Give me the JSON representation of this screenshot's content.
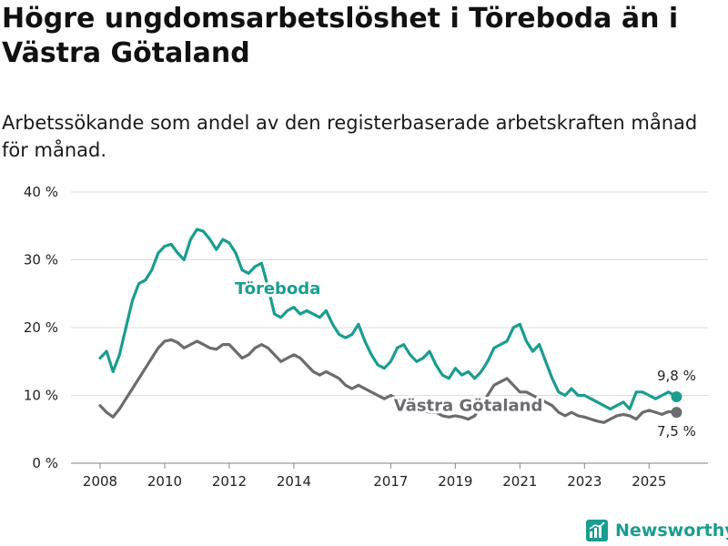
{
  "title": "Högre ungdomsarbetslöshet i Töreboda än i Västra Götaland",
  "subtitle": "Arbetssökande som andel av den registerbaserade arbetskraften månad för månad.",
  "brand": {
    "name": "Newsworthy",
    "color": "#1a9d8f"
  },
  "chart_data": {
    "type": "line",
    "title": "Högre ungdomsarbetslöshet i Töreboda än i Västra Götaland",
    "xlabel": "",
    "ylabel": "",
    "xlim": [
      2008.0,
      2025.95
    ],
    "ylim": [
      0,
      40
    ],
    "y_ticks": [
      0,
      10,
      20,
      30,
      40
    ],
    "y_tick_labels": [
      "0 %",
      "10 %",
      "20 %",
      "30 %",
      "40 %"
    ],
    "x_ticks": [
      2008,
      2010,
      2012,
      2014,
      2017,
      2019,
      2021,
      2023,
      2025
    ],
    "x_tick_labels": [
      "2008",
      "2010",
      "2012",
      "2014",
      "2017",
      "2019",
      "2021",
      "2023",
      "2025"
    ],
    "grid": true,
    "legend": "inline labels",
    "series": [
      {
        "name": "Töreboda",
        "color": "#1a9d8f",
        "end_label": "9,8 %",
        "end_value": 9.8,
        "x": [
          2008.0,
          2008.2,
          2008.4,
          2008.6,
          2008.8,
          2009.0,
          2009.2,
          2009.4,
          2009.6,
          2009.8,
          2010.0,
          2010.2,
          2010.4,
          2010.6,
          2010.8,
          2011.0,
          2011.2,
          2011.4,
          2011.6,
          2011.8,
          2012.0,
          2012.2,
          2012.4,
          2012.6,
          2012.8,
          2013.0,
          2013.2,
          2013.4,
          2013.6,
          2013.8,
          2014.0,
          2014.2,
          2014.4,
          2014.6,
          2014.8,
          2015.0,
          2015.2,
          2015.4,
          2015.6,
          2015.8,
          2016.0,
          2016.2,
          2016.4,
          2016.6,
          2016.8,
          2017.0,
          2017.2,
          2017.4,
          2017.6,
          2017.8,
          2018.0,
          2018.2,
          2018.4,
          2018.6,
          2018.8,
          2019.0,
          2019.2,
          2019.4,
          2019.6,
          2019.8,
          2020.0,
          2020.2,
          2020.4,
          2020.6,
          2020.8,
          2021.0,
          2021.2,
          2021.4,
          2021.6,
          2021.8,
          2022.0,
          2022.2,
          2022.4,
          2022.6,
          2022.8,
          2023.0,
          2023.2,
          2023.4,
          2023.6,
          2023.8,
          2024.0,
          2024.2,
          2024.4,
          2024.6,
          2024.8,
          2025.0,
          2025.2,
          2025.4,
          2025.6,
          2025.85
        ],
        "values": [
          15.5,
          16.5,
          13.5,
          16.0,
          20.0,
          24.0,
          26.5,
          27.0,
          28.5,
          31.0,
          32.0,
          32.3,
          31.0,
          30.0,
          33.0,
          34.5,
          34.2,
          33.0,
          31.5,
          33.0,
          32.5,
          31.0,
          28.5,
          28.0,
          29.0,
          29.5,
          26.0,
          22.0,
          21.5,
          22.5,
          23.0,
          22.0,
          22.5,
          22.0,
          21.5,
          22.5,
          20.5,
          19.0,
          18.5,
          19.0,
          20.5,
          18.0,
          16.0,
          14.5,
          14.0,
          15.0,
          17.0,
          17.5,
          16.0,
          15.0,
          15.5,
          16.5,
          14.5,
          13.0,
          12.5,
          14.0,
          13.0,
          13.5,
          12.5,
          13.5,
          15.0,
          17.0,
          17.5,
          18.0,
          20.0,
          20.5,
          18.0,
          16.5,
          17.5,
          15.0,
          12.5,
          10.5,
          10.0,
          11.0,
          10.0,
          10.0,
          9.5,
          9.0,
          8.5,
          8.0,
          8.5,
          9.0,
          8.0,
          10.5,
          10.5,
          10.0,
          9.5,
          10.0,
          10.5,
          9.8
        ]
      },
      {
        "name": "Västra Götaland",
        "color": "#6b6b70",
        "end_label": "7,5 %",
        "end_value": 7.5,
        "x": [
          2008.0,
          2008.2,
          2008.4,
          2008.6,
          2008.8,
          2009.0,
          2009.2,
          2009.4,
          2009.6,
          2009.8,
          2010.0,
          2010.2,
          2010.4,
          2010.6,
          2010.8,
          2011.0,
          2011.2,
          2011.4,
          2011.6,
          2011.8,
          2012.0,
          2012.2,
          2012.4,
          2012.6,
          2012.8,
          2013.0,
          2013.2,
          2013.4,
          2013.6,
          2013.8,
          2014.0,
          2014.2,
          2014.4,
          2014.6,
          2014.8,
          2015.0,
          2015.2,
          2015.4,
          2015.6,
          2015.8,
          2016.0,
          2016.2,
          2016.4,
          2016.6,
          2016.8,
          2017.0,
          2017.2,
          2017.4,
          2017.6,
          2017.8,
          2018.0,
          2018.2,
          2018.4,
          2018.6,
          2018.8,
          2019.0,
          2019.2,
          2019.4,
          2019.6,
          2019.8,
          2020.0,
          2020.2,
          2020.4,
          2020.6,
          2020.8,
          2021.0,
          2021.2,
          2021.4,
          2021.6,
          2021.8,
          2022.0,
          2022.2,
          2022.4,
          2022.6,
          2022.8,
          2023.0,
          2023.2,
          2023.4,
          2023.6,
          2023.8,
          2024.0,
          2024.2,
          2024.4,
          2024.6,
          2024.8,
          2025.0,
          2025.2,
          2025.4,
          2025.6,
          2025.85
        ],
        "values": [
          8.5,
          7.5,
          6.8,
          8.0,
          9.5,
          11.0,
          12.5,
          14.0,
          15.5,
          17.0,
          18.0,
          18.2,
          17.8,
          17.0,
          17.5,
          18.0,
          17.5,
          17.0,
          16.8,
          17.5,
          17.5,
          16.5,
          15.5,
          16.0,
          17.0,
          17.5,
          17.0,
          16.0,
          15.0,
          15.5,
          16.0,
          15.5,
          14.5,
          13.5,
          13.0,
          13.5,
          13.0,
          12.5,
          11.5,
          11.0,
          11.5,
          11.0,
          10.5,
          10.0,
          9.5,
          10.0,
          9.5,
          9.0,
          8.5,
          8.0,
          7.8,
          7.5,
          7.5,
          7.0,
          6.8,
          7.0,
          6.8,
          6.5,
          7.0,
          8.5,
          10.0,
          11.5,
          12.0,
          12.5,
          11.5,
          10.5,
          10.5,
          10.0,
          9.5,
          9.0,
          8.5,
          7.5,
          7.0,
          7.5,
          7.0,
          6.8,
          6.5,
          6.2,
          6.0,
          6.5,
          7.0,
          7.2,
          7.0,
          6.5,
          7.5,
          7.8,
          7.5,
          7.2,
          7.6,
          7.5
        ]
      }
    ]
  }
}
